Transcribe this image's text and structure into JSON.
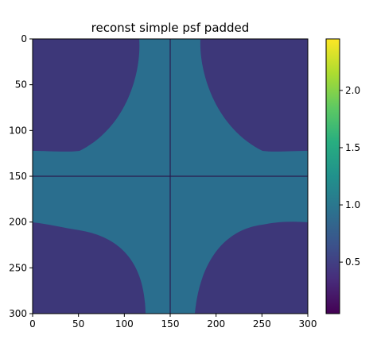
{
  "chart_data": {
    "type": "heatmap",
    "title": "reconst simple psf padded",
    "xlabel": "",
    "ylabel": "",
    "xlim": [
      0,
      300
    ],
    "ylim": [
      300,
      0
    ],
    "x_ticks": [
      "0",
      "50",
      "100",
      "150",
      "200",
      "250",
      "300"
    ],
    "y_ticks": [
      "0",
      "50",
      "100",
      "150",
      "200",
      "250",
      "300"
    ],
    "grid": false,
    "colormap": "viridis",
    "colorbar": {
      "range": [
        0.05,
        2.45
      ],
      "ticks": [
        "0.5",
        "1.0",
        "1.5",
        "2.0"
      ]
    },
    "padding_value": 1.0,
    "center_lines": {
      "x": 150,
      "y": 150
    },
    "background_value": 0.5,
    "quadrant_corners": [
      "top-left",
      "top-right",
      "bottom-left",
      "bottom-right"
    ]
  }
}
